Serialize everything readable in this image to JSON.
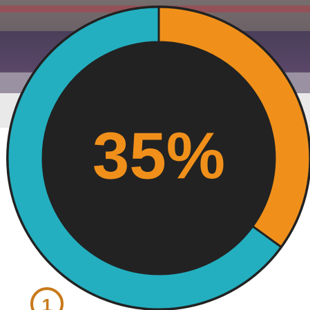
{
  "chart_data": {
    "type": "donut",
    "values": [
      35,
      65
    ],
    "value_labels": [
      "35%",
      null
    ],
    "colors": [
      "#f0901a",
      "#23afc0"
    ],
    "start_angle": 0,
    "center_color": "#222222"
  },
  "badge": "1"
}
